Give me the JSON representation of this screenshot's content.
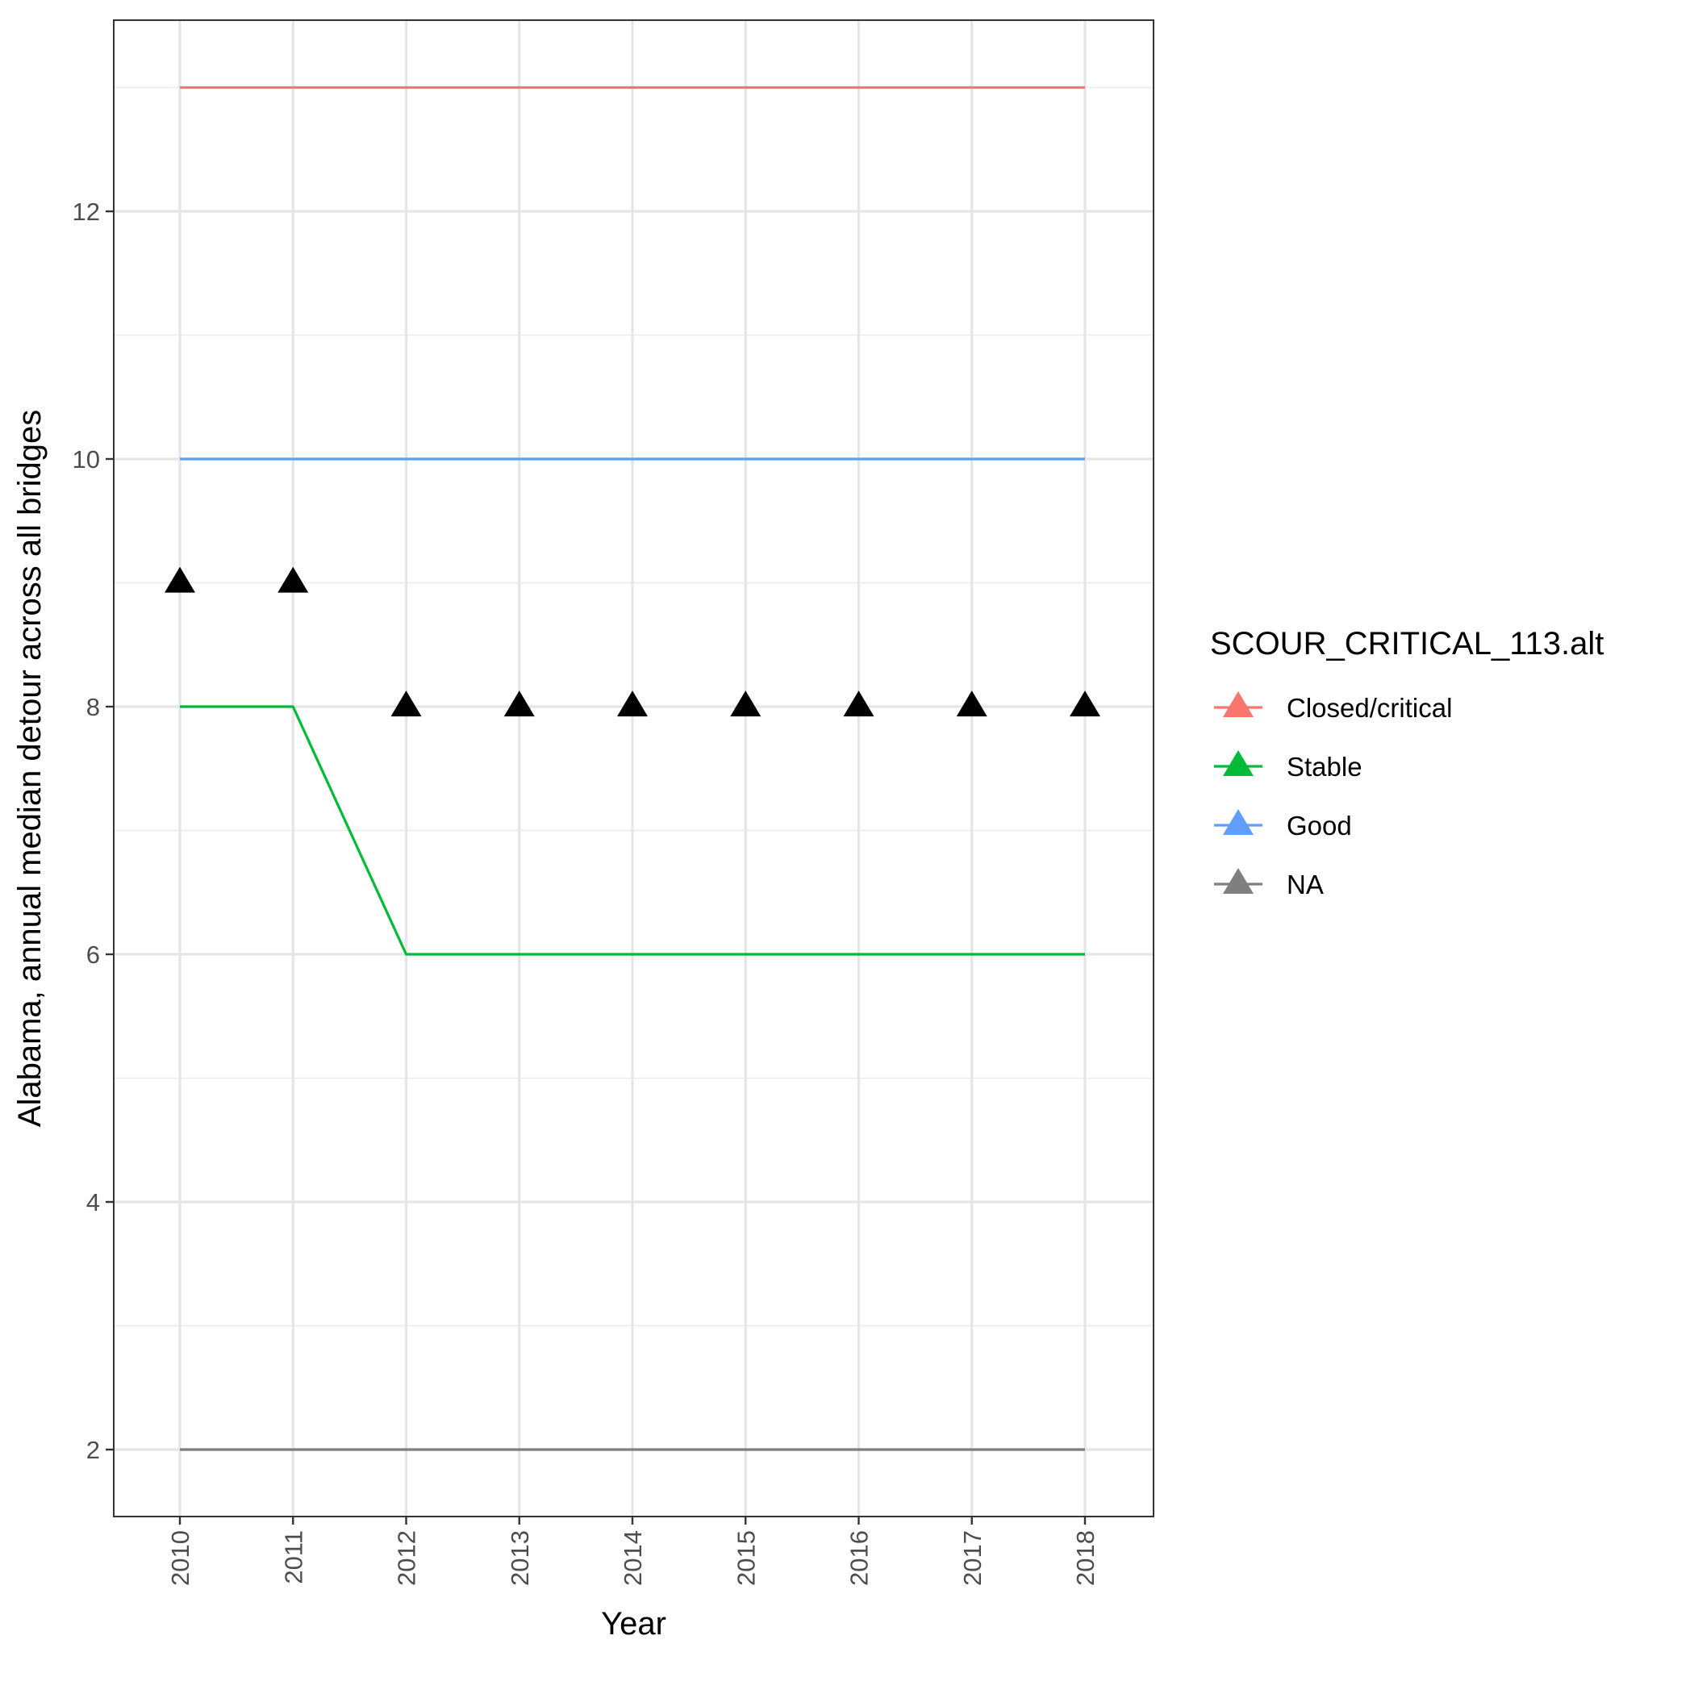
{
  "chart_data": {
    "type": "line",
    "xlabel": "Year",
    "ylabel": "Alabama, annual median detour across all bridges",
    "x": [
      2010,
      2011,
      2012,
      2013,
      2014,
      2015,
      2016,
      2017,
      2018
    ],
    "x_tick_labels": [
      "2010",
      "2011",
      "2012",
      "2013",
      "2014",
      "2015",
      "2016",
      "2017",
      "2018"
    ],
    "y_ticks": [
      2,
      4,
      6,
      8,
      10,
      12
    ],
    "y_tick_labels": [
      "2",
      "4",
      "6",
      "8",
      "10",
      "12"
    ],
    "ylim": [
      1.5,
      13.5
    ],
    "grid": true,
    "legend": {
      "title": "SCOUR_CRITICAL_113.alt",
      "placement": "right"
    },
    "series": [
      {
        "name": "Closed/critical",
        "color": "#F8766D",
        "values": [
          13,
          13,
          13,
          13,
          13,
          13,
          13,
          13,
          13
        ]
      },
      {
        "name": "Stable",
        "color": "#00BA38",
        "values": [
          8,
          8,
          6,
          6,
          6,
          6,
          6,
          6,
          6
        ]
      },
      {
        "name": "Good",
        "color": "#619CFF",
        "values": [
          10,
          10,
          10,
          10,
          10,
          10,
          10,
          10,
          10
        ]
      },
      {
        "name": "NA",
        "color": "#7F7F7F",
        "values": [
          2,
          2,
          2,
          2,
          2,
          2,
          2,
          2,
          2
        ]
      }
    ],
    "points": {
      "marker": "triangle",
      "color": "#000000",
      "values": [
        9,
        9,
        8,
        8,
        8,
        8,
        8,
        8,
        8
      ]
    }
  }
}
